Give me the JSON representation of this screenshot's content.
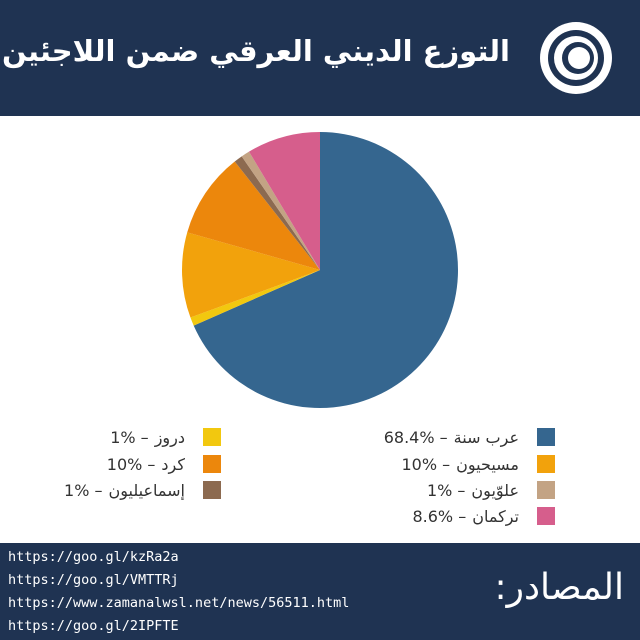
{
  "chart_data": {
    "type": "pie",
    "title": "التوزع الديني العرقي ضمن اللاجئين",
    "categories": [
      "عرب سنة",
      "دروز",
      "مسيحيون",
      "كرد",
      "إسماعيليون",
      "علوّيون",
      "تركمان"
    ],
    "values": [
      68.4,
      1,
      10,
      10,
      1,
      1,
      8.6
    ],
    "value_labels": [
      "– 68.4%",
      "– 1%",
      "– 10%",
      "– 10%",
      "– 1%",
      "– 1%",
      "– 8.6%"
    ],
    "colors": [
      "#35668f",
      "#f2c80f",
      "#f2a20c",
      "#ec870c",
      "#8c6a50",
      "#c3a384",
      "#d65e8c"
    ]
  },
  "footer": {
    "title": "المصادر:",
    "sources": [
      "https://goo.gl/kzRa2a",
      "https://goo.gl/VMTTRj",
      "https://www.zamanalwsl.net/news/56511.html",
      "https://goo.gl/2IPFTE"
    ]
  }
}
